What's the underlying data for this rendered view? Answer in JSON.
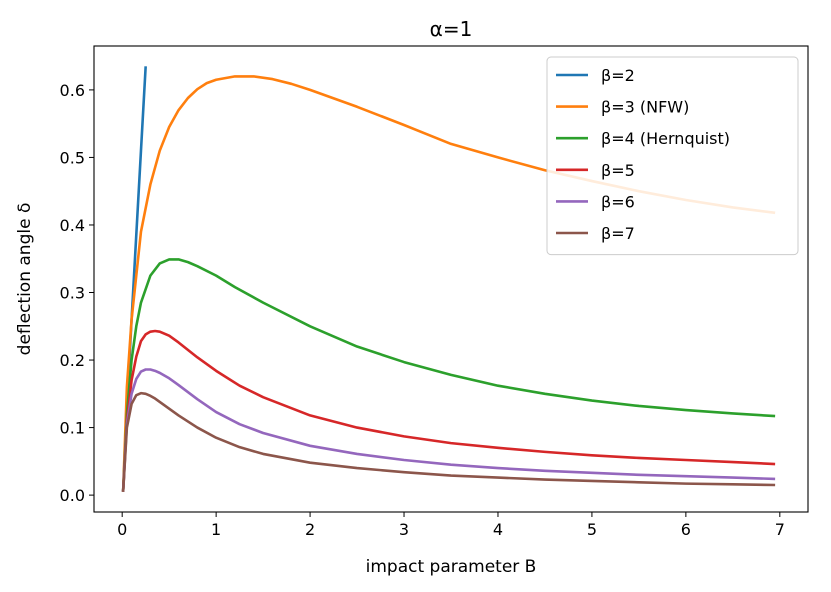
{
  "chart_data": {
    "type": "line",
    "title": "α=1",
    "xlabel": "impact parameter B",
    "ylabel": "deflection angle δ",
    "xlim": [
      -0.3,
      7.3
    ],
    "ylim": [
      -0.025,
      0.665
    ],
    "xticks": [
      0,
      1,
      2,
      3,
      4,
      5,
      6,
      7
    ],
    "xtick_labels": [
      "0",
      "1",
      "2",
      "3",
      "4",
      "5",
      "6",
      "7"
    ],
    "yticks": [
      0.0,
      0.1,
      0.2,
      0.3,
      0.4,
      0.5,
      0.6
    ],
    "ytick_labels": [
      "0.0",
      "0.1",
      "0.2",
      "0.3",
      "0.4",
      "0.5",
      "0.6"
    ],
    "grid": false,
    "legend_position": "top-right",
    "series": [
      {
        "name": "β=2",
        "color": "#1f77b4",
        "x": [
          0.01,
          0.05,
          0.1,
          0.15,
          0.2,
          0.25
        ],
        "y": [
          0.005,
          0.13,
          0.26,
          0.385,
          0.51,
          0.635
        ]
      },
      {
        "name": "β=3 (NFW)",
        "color": "#ff7f0e",
        "x": [
          0.01,
          0.05,
          0.1,
          0.2,
          0.3,
          0.4,
          0.5,
          0.6,
          0.7,
          0.8,
          0.9,
          1.0,
          1.2,
          1.4,
          1.6,
          1.8,
          2.0,
          2.5,
          3.0,
          3.5,
          4.0,
          4.5,
          5.0,
          5.5,
          6.0,
          6.5,
          6.95
        ],
        "y": [
          0.005,
          0.16,
          0.26,
          0.39,
          0.46,
          0.51,
          0.545,
          0.57,
          0.588,
          0.601,
          0.61,
          0.615,
          0.62,
          0.62,
          0.616,
          0.609,
          0.6,
          0.575,
          0.548,
          0.52,
          0.5,
          0.481,
          0.465,
          0.45,
          0.437,
          0.426,
          0.418
        ]
      },
      {
        "name": "β=4 (Hernquist)",
        "color": "#2ca02c",
        "x": [
          0.01,
          0.05,
          0.1,
          0.15,
          0.2,
          0.3,
          0.4,
          0.5,
          0.6,
          0.7,
          0.8,
          1.0,
          1.2,
          1.5,
          2.0,
          2.5,
          3.0,
          3.5,
          4.0,
          4.5,
          5.0,
          5.5,
          6.0,
          6.5,
          6.95
        ],
        "y": [
          0.005,
          0.12,
          0.2,
          0.25,
          0.285,
          0.325,
          0.343,
          0.349,
          0.349,
          0.345,
          0.339,
          0.325,
          0.308,
          0.285,
          0.25,
          0.22,
          0.197,
          0.178,
          0.162,
          0.15,
          0.14,
          0.132,
          0.126,
          0.121,
          0.117
        ]
      },
      {
        "name": "β=5",
        "color": "#d62728",
        "x": [
          0.01,
          0.05,
          0.1,
          0.15,
          0.2,
          0.25,
          0.3,
          0.35,
          0.4,
          0.5,
          0.6,
          0.8,
          1.0,
          1.25,
          1.5,
          2.0,
          2.5,
          3.0,
          3.5,
          4.0,
          4.5,
          5.0,
          5.5,
          6.0,
          6.5,
          6.95
        ],
        "y": [
          0.005,
          0.11,
          0.17,
          0.205,
          0.228,
          0.238,
          0.242,
          0.243,
          0.242,
          0.236,
          0.226,
          0.204,
          0.184,
          0.162,
          0.145,
          0.118,
          0.1,
          0.087,
          0.077,
          0.07,
          0.064,
          0.059,
          0.055,
          0.052,
          0.049,
          0.046
        ]
      },
      {
        "name": "β=6",
        "color": "#9467bd",
        "x": [
          0.01,
          0.05,
          0.1,
          0.15,
          0.2,
          0.25,
          0.3,
          0.35,
          0.4,
          0.5,
          0.6,
          0.8,
          1.0,
          1.25,
          1.5,
          2.0,
          2.5,
          3.0,
          3.5,
          4.0,
          4.5,
          5.0,
          5.5,
          6.0,
          6.5,
          6.95
        ],
        "y": [
          0.005,
          0.105,
          0.15,
          0.172,
          0.183,
          0.186,
          0.186,
          0.184,
          0.181,
          0.173,
          0.163,
          0.142,
          0.123,
          0.105,
          0.092,
          0.073,
          0.061,
          0.052,
          0.045,
          0.04,
          0.036,
          0.033,
          0.03,
          0.028,
          0.026,
          0.024
        ]
      },
      {
        "name": "β=7",
        "color": "#8c564b",
        "x": [
          0.01,
          0.05,
          0.1,
          0.15,
          0.2,
          0.25,
          0.3,
          0.35,
          0.4,
          0.5,
          0.6,
          0.8,
          1.0,
          1.25,
          1.5,
          2.0,
          2.5,
          3.0,
          3.5,
          4.0,
          4.5,
          5.0,
          5.5,
          6.0,
          6.5,
          6.95
        ],
        "y": [
          0.005,
          0.1,
          0.135,
          0.148,
          0.151,
          0.15,
          0.147,
          0.143,
          0.138,
          0.128,
          0.118,
          0.1,
          0.085,
          0.071,
          0.061,
          0.048,
          0.04,
          0.034,
          0.029,
          0.026,
          0.023,
          0.021,
          0.019,
          0.017,
          0.016,
          0.015
        ]
      }
    ]
  }
}
